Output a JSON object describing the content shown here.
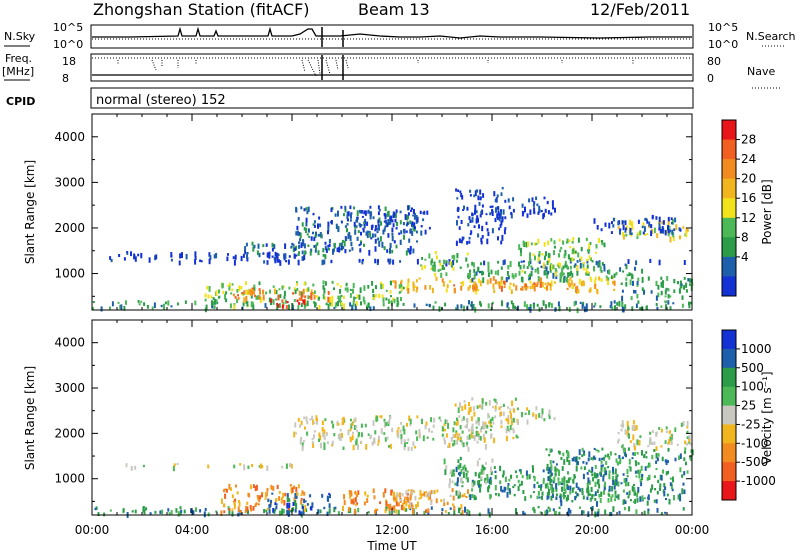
{
  "header": {
    "title": "Zhongshan Station (fitACF)",
    "beam": "Beam 13",
    "date": "12/Feb/2011"
  },
  "aux": {
    "nsky_label": "N.Sky",
    "nsearch_label": "N.Search",
    "noise_ticks": [
      "10^5",
      "10^0"
    ],
    "freq_label_top": "Freq.",
    "freq_label_unit": "[MHz]",
    "freq_ticks": [
      "18",
      "8"
    ],
    "nave_ticks": [
      "80",
      "0"
    ],
    "nave_label": "Nave",
    "cpid_label": "CPID",
    "cpid_text": "normal (stereo) 152"
  },
  "chart_data": [
    {
      "type": "heatmap",
      "name": "power",
      "ylabel": "Slant Range [km]",
      "yticks": [
        "1000",
        "2000",
        "3000",
        "4000"
      ],
      "ylim": [
        200,
        4500
      ],
      "xlim": [
        0,
        24
      ],
      "colorbar": {
        "label": "Power [dB]",
        "ticks": [
          "28",
          "24",
          "20",
          "16",
          "12",
          "8",
          "4"
        ],
        "colors": [
          "#e8161a",
          "#f15f21",
          "#f28c20",
          "#f1b61d",
          "#f2e21b",
          "#4db857",
          "#2b9d48",
          "#1d5faa",
          "#1432d4"
        ]
      },
      "bands": [
        {
          "t0": 0.0,
          "t1": 24.0,
          "r0": 250,
          "r1": 420,
          "level": 6
        },
        {
          "t0": 4.5,
          "t1": 12.5,
          "r0": 300,
          "r1": 850,
          "level": 5
        },
        {
          "t0": 5.5,
          "t1": 9.5,
          "r0": 450,
          "r1": 700,
          "level": 2
        },
        {
          "t0": 7.0,
          "t1": 8.5,
          "r0": 300,
          "r1": 500,
          "level": 0
        },
        {
          "t0": 0.5,
          "t1": 8.5,
          "r0": 1350,
          "r1": 1500,
          "level": 8
        },
        {
          "t0": 0.6,
          "t1": 24.0,
          "r0": 1280,
          "r1": 1330,
          "level": 8
        },
        {
          "t0": 6.0,
          "t1": 10.0,
          "r0": 1400,
          "r1": 1700,
          "level": 7
        },
        {
          "t0": 8.0,
          "t1": 13.0,
          "r0": 1500,
          "r1": 2500,
          "level": 7
        },
        {
          "t0": 10.0,
          "t1": 13.5,
          "r0": 1900,
          "r1": 2400,
          "level": 8
        },
        {
          "t0": 12.0,
          "t1": 21.0,
          "r0": 650,
          "r1": 950,
          "level": 3
        },
        {
          "t0": 14.0,
          "t1": 20.0,
          "r0": 700,
          "r1": 850,
          "level": 2
        },
        {
          "t0": 15.0,
          "t1": 22.0,
          "r0": 900,
          "r1": 1300,
          "level": 6
        },
        {
          "t0": 17.0,
          "t1": 20.5,
          "r0": 1000,
          "r1": 1800,
          "level": 5
        },
        {
          "t0": 14.5,
          "t1": 16.5,
          "r0": 1700,
          "r1": 2900,
          "level": 8
        },
        {
          "t0": 16.0,
          "t1": 18.5,
          "r0": 2300,
          "r1": 2700,
          "level": 8
        },
        {
          "t0": 21.0,
          "t1": 24.0,
          "r0": 500,
          "r1": 950,
          "level": 6
        },
        {
          "t0": 21.0,
          "t1": 24.0,
          "r0": 1800,
          "r1": 2200,
          "level": 4
        },
        {
          "t0": 20.0,
          "t1": 23.5,
          "r0": 1900,
          "r1": 2300,
          "level": 8
        },
        {
          "t0": 13.0,
          "t1": 15.0,
          "r0": 1000,
          "r1": 1500,
          "level": 5
        }
      ]
    },
    {
      "type": "heatmap",
      "name": "velocity",
      "ylabel": "Slant Range [km]",
      "yticks": [
        "1000",
        "2000",
        "3000",
        "4000"
      ],
      "ylim": [
        200,
        4500
      ],
      "xlim": [
        0,
        24
      ],
      "xlabel": "Time UT",
      "xticks": [
        "00:00",
        "04:00",
        "08:00",
        "12:00",
        "16:00",
        "20:00",
        "00:00"
      ],
      "colorbar": {
        "label": "Velocity [m s⁻¹]",
        "ticks": [
          "1000",
          "500",
          "100",
          "25",
          "-25",
          "-100",
          "-500",
          "-1000"
        ],
        "colors": [
          "#1432d4",
          "#1d5faa",
          "#2b9d48",
          "#4db857",
          "#c8c8c0",
          "#f1b61d",
          "#f28c20",
          "#f15f21",
          "#e8161a"
        ]
      },
      "bands": [
        {
          "t0": 0.0,
          "t1": 24.0,
          "r0": 250,
          "r1": 400,
          "level": 2
        },
        {
          "t0": 5.0,
          "t1": 8.5,
          "r0": 300,
          "r1": 900,
          "level": 6
        },
        {
          "t0": 7.0,
          "t1": 9.5,
          "r0": 300,
          "r1": 700,
          "level": 1
        },
        {
          "t0": 10.0,
          "t1": 13.5,
          "r0": 300,
          "r1": 800,
          "level": 6
        },
        {
          "t0": 0.6,
          "t1": 8.0,
          "r0": 1280,
          "r1": 1350,
          "level": 4
        },
        {
          "t0": 8.0,
          "t1": 16.0,
          "r0": 1700,
          "r1": 2400,
          "level": 4
        },
        {
          "t0": 14.5,
          "t1": 17.0,
          "r0": 1900,
          "r1": 2800,
          "level": 4
        },
        {
          "t0": 16.5,
          "t1": 18.5,
          "r0": 2300,
          "r1": 2600,
          "level": 4
        },
        {
          "t0": 21.0,
          "t1": 24.0,
          "r0": 1700,
          "r1": 2300,
          "level": 4
        },
        {
          "t0": 14.5,
          "t1": 21.0,
          "r0": 600,
          "r1": 1300,
          "level": 2
        },
        {
          "t0": 18.0,
          "t1": 24.0,
          "r0": 500,
          "r1": 1700,
          "level": 2
        },
        {
          "t0": 12.0,
          "t1": 15.0,
          "r0": 300,
          "r1": 800,
          "level": 5
        },
        {
          "t0": 14.0,
          "t1": 16.0,
          "r0": 900,
          "r1": 1500,
          "level": 3
        }
      ]
    }
  ]
}
